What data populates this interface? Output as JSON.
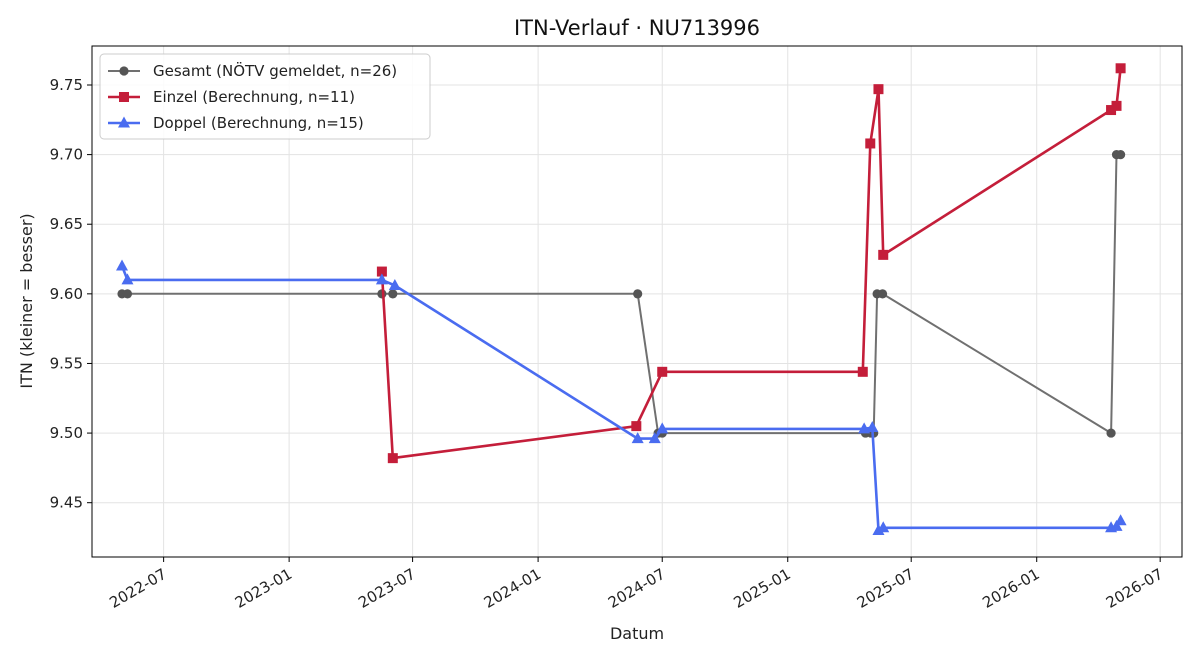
{
  "chart_data": {
    "type": "line",
    "title": "ITN-Verlauf · NU713996",
    "xlabel": "Datum",
    "ylabel": "ITN  (kleiner = besser)",
    "xlim": [
      "2022-03-18",
      "2026-08-02"
    ],
    "ylim": [
      9.411,
      9.778
    ],
    "grid": true,
    "legend_position": "top-left",
    "x_ticks": [
      {
        "date": "2022-07-01",
        "label": "2022-07"
      },
      {
        "date": "2023-01-01",
        "label": "2023-01"
      },
      {
        "date": "2023-07-01",
        "label": "2023-07"
      },
      {
        "date": "2024-01-01",
        "label": "2024-01"
      },
      {
        "date": "2024-07-01",
        "label": "2024-07"
      },
      {
        "date": "2025-01-01",
        "label": "2025-01"
      },
      {
        "date": "2025-07-01",
        "label": "2025-07"
      },
      {
        "date": "2026-01-01",
        "label": "2026-01"
      },
      {
        "date": "2026-07-01",
        "label": "2026-07"
      }
    ],
    "y_ticks": [
      {
        "value": 9.45,
        "label": "9.45"
      },
      {
        "value": 9.5,
        "label": "9.50"
      },
      {
        "value": 9.55,
        "label": "9.55"
      },
      {
        "value": 9.6,
        "label": "9.60"
      },
      {
        "value": 9.65,
        "label": "9.65"
      },
      {
        "value": 9.7,
        "label": "9.70"
      },
      {
        "value": 9.75,
        "label": "9.75"
      }
    ],
    "series": [
      {
        "name": "Gesamt (NÖTV gemeldet, n=26)",
        "color": "#707070",
        "marker": "circle",
        "points": [
          {
            "x": "2022-05-01",
            "y": 9.6
          },
          {
            "x": "2022-05-09",
            "y": 9.6
          },
          {
            "x": "2023-05-17",
            "y": 9.6
          },
          {
            "x": "2023-06-02",
            "y": 9.6
          },
          {
            "x": "2024-05-26",
            "y": 9.6
          },
          {
            "x": "2024-06-25",
            "y": 9.5
          },
          {
            "x": "2024-07-01",
            "y": 9.5
          },
          {
            "x": "2025-04-25",
            "y": 9.5
          },
          {
            "x": "2025-05-03",
            "y": 9.5
          },
          {
            "x": "2025-05-07",
            "y": 9.5
          },
          {
            "x": "2025-05-12",
            "y": 9.6
          },
          {
            "x": "2025-05-20",
            "y": 9.6
          },
          {
            "x": "2026-04-20",
            "y": 9.5
          },
          {
            "x": "2026-04-28",
            "y": 9.7
          },
          {
            "x": "2026-05-04",
            "y": 9.7
          }
        ]
      },
      {
        "name": "Einzel (Berechnung, n=11)",
        "color": "#c41e3a",
        "marker": "square",
        "points": [
          {
            "x": "2023-05-17",
            "y": 9.616
          },
          {
            "x": "2023-06-02",
            "y": 9.482
          },
          {
            "x": "2024-05-24",
            "y": 9.505
          },
          {
            "x": "2024-07-01",
            "y": 9.544
          },
          {
            "x": "2025-04-21",
            "y": 9.544
          },
          {
            "x": "2025-05-02",
            "y": 9.708
          },
          {
            "x": "2025-05-14",
            "y": 9.747
          },
          {
            "x": "2025-05-21",
            "y": 9.628
          },
          {
            "x": "2026-04-20",
            "y": 9.732
          },
          {
            "x": "2026-04-28",
            "y": 9.735
          },
          {
            "x": "2026-05-04",
            "y": 9.762
          }
        ]
      },
      {
        "name": "Doppel (Berechnung, n=15)",
        "color": "#4a6cf0",
        "marker": "triangle",
        "points": [
          {
            "x": "2022-05-01",
            "y": 9.62
          },
          {
            "x": "2022-05-09",
            "y": 9.61
          },
          {
            "x": "2023-05-17",
            "y": 9.61
          },
          {
            "x": "2023-06-05",
            "y": 9.606
          },
          {
            "x": "2024-05-26",
            "y": 9.496
          },
          {
            "x": "2024-06-20",
            "y": 9.496
          },
          {
            "x": "2024-07-01",
            "y": 9.503
          },
          {
            "x": "2025-04-23",
            "y": 9.503
          },
          {
            "x": "2025-05-05",
            "y": 9.504
          },
          {
            "x": "2025-05-14",
            "y": 9.43
          },
          {
            "x": "2025-05-21",
            "y": 9.432
          },
          {
            "x": "2026-04-20",
            "y": 9.432
          },
          {
            "x": "2026-04-28",
            "y": 9.433
          },
          {
            "x": "2026-05-04",
            "y": 9.437
          }
        ]
      }
    ]
  }
}
